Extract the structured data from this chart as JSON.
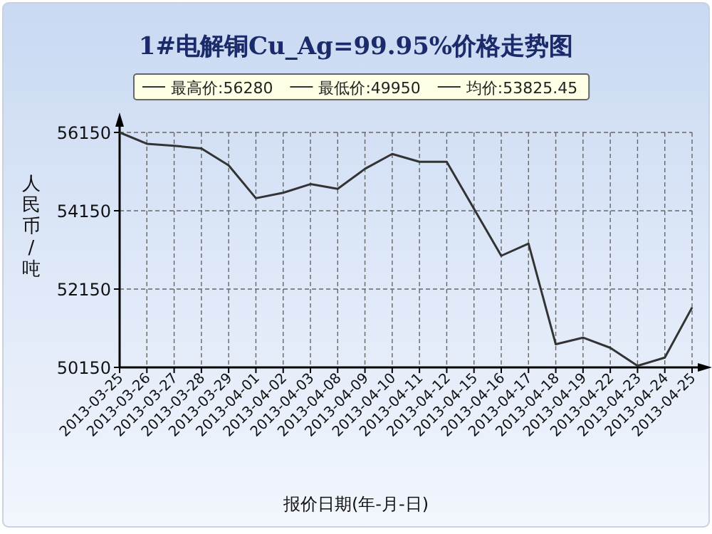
{
  "chart_data": {
    "type": "line",
    "title": "1#电解铜Cu_Ag=99.95%价格走势图",
    "xlabel": "报价日期(年-月-日)",
    "ylabel": "人民币/吨",
    "annotations": [
      "最高价:56280",
      "最低价:49950",
      "均价:53825.45"
    ],
    "categories": [
      "2013-03-25",
      "2013-03-26",
      "2013-03-27",
      "2013-03-28",
      "2013-03-29",
      "2013-04-01",
      "2013-04-02",
      "2013-04-03",
      "2013-04-08",
      "2013-04-09",
      "2013-04-10",
      "2013-04-11",
      "2013-04-12",
      "2013-04-15",
      "2013-04-16",
      "2013-04-17",
      "2013-04-18",
      "2013-04-19",
      "2013-04-22",
      "2013-04-23",
      "2013-04-24",
      "2013-04-25"
    ],
    "series": [
      {
        "color": "#333333",
        "values": [
          56150,
          55860,
          55810,
          55740,
          55310,
          54470,
          54610,
          54830,
          54710,
          55220,
          55600,
          55400,
          55400,
          54200,
          53000,
          53310,
          50740,
          50910,
          50650,
          50190,
          50400,
          51680
        ]
      }
    ],
    "ylim": [
      50150,
      56150
    ],
    "yticks": [
      50150,
      52150,
      54150,
      56150
    ],
    "grid": true,
    "marker": "none",
    "line_style": "solid"
  }
}
